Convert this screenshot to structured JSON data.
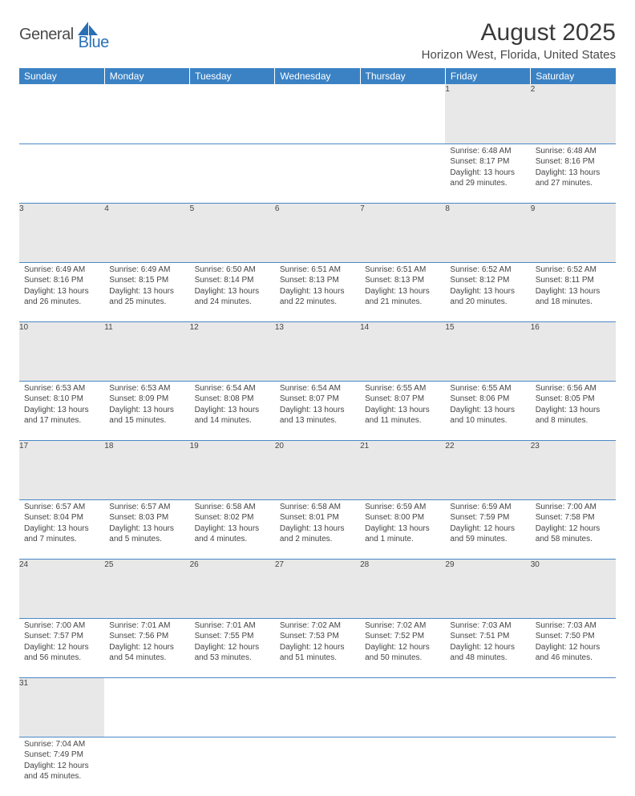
{
  "brand": {
    "dark": "General",
    "blue": "Blue"
  },
  "title": "August 2025",
  "location": "Horizon West, Florida, United States",
  "colors": {
    "header_bg": "#3b82c4",
    "header_text": "#ffffff",
    "daynum_bg": "#e8e8e8",
    "row_border": "#4a88c6",
    "logo_blue": "#2a6fb5",
    "text": "#444444"
  },
  "day_headers": [
    "Sunday",
    "Monday",
    "Tuesday",
    "Wednesday",
    "Thursday",
    "Friday",
    "Saturday"
  ],
  "weeks": [
    [
      null,
      null,
      null,
      null,
      null,
      {
        "n": "1",
        "sr": "6:48 AM",
        "ss": "8:17 PM",
        "dl": "13 hours and 29 minutes."
      },
      {
        "n": "2",
        "sr": "6:48 AM",
        "ss": "8:16 PM",
        "dl": "13 hours and 27 minutes."
      }
    ],
    [
      {
        "n": "3",
        "sr": "6:49 AM",
        "ss": "8:16 PM",
        "dl": "13 hours and 26 minutes."
      },
      {
        "n": "4",
        "sr": "6:49 AM",
        "ss": "8:15 PM",
        "dl": "13 hours and 25 minutes."
      },
      {
        "n": "5",
        "sr": "6:50 AM",
        "ss": "8:14 PM",
        "dl": "13 hours and 24 minutes."
      },
      {
        "n": "6",
        "sr": "6:51 AM",
        "ss": "8:13 PM",
        "dl": "13 hours and 22 minutes."
      },
      {
        "n": "7",
        "sr": "6:51 AM",
        "ss": "8:13 PM",
        "dl": "13 hours and 21 minutes."
      },
      {
        "n": "8",
        "sr": "6:52 AM",
        "ss": "8:12 PM",
        "dl": "13 hours and 20 minutes."
      },
      {
        "n": "9",
        "sr": "6:52 AM",
        "ss": "8:11 PM",
        "dl": "13 hours and 18 minutes."
      }
    ],
    [
      {
        "n": "10",
        "sr": "6:53 AM",
        "ss": "8:10 PM",
        "dl": "13 hours and 17 minutes."
      },
      {
        "n": "11",
        "sr": "6:53 AM",
        "ss": "8:09 PM",
        "dl": "13 hours and 15 minutes."
      },
      {
        "n": "12",
        "sr": "6:54 AM",
        "ss": "8:08 PM",
        "dl": "13 hours and 14 minutes."
      },
      {
        "n": "13",
        "sr": "6:54 AM",
        "ss": "8:07 PM",
        "dl": "13 hours and 13 minutes."
      },
      {
        "n": "14",
        "sr": "6:55 AM",
        "ss": "8:07 PM",
        "dl": "13 hours and 11 minutes."
      },
      {
        "n": "15",
        "sr": "6:55 AM",
        "ss": "8:06 PM",
        "dl": "13 hours and 10 minutes."
      },
      {
        "n": "16",
        "sr": "6:56 AM",
        "ss": "8:05 PM",
        "dl": "13 hours and 8 minutes."
      }
    ],
    [
      {
        "n": "17",
        "sr": "6:57 AM",
        "ss": "8:04 PM",
        "dl": "13 hours and 7 minutes."
      },
      {
        "n": "18",
        "sr": "6:57 AM",
        "ss": "8:03 PM",
        "dl": "13 hours and 5 minutes."
      },
      {
        "n": "19",
        "sr": "6:58 AM",
        "ss": "8:02 PM",
        "dl": "13 hours and 4 minutes."
      },
      {
        "n": "20",
        "sr": "6:58 AM",
        "ss": "8:01 PM",
        "dl": "13 hours and 2 minutes."
      },
      {
        "n": "21",
        "sr": "6:59 AM",
        "ss": "8:00 PM",
        "dl": "13 hours and 1 minute."
      },
      {
        "n": "22",
        "sr": "6:59 AM",
        "ss": "7:59 PM",
        "dl": "12 hours and 59 minutes."
      },
      {
        "n": "23",
        "sr": "7:00 AM",
        "ss": "7:58 PM",
        "dl": "12 hours and 58 minutes."
      }
    ],
    [
      {
        "n": "24",
        "sr": "7:00 AM",
        "ss": "7:57 PM",
        "dl": "12 hours and 56 minutes."
      },
      {
        "n": "25",
        "sr": "7:01 AM",
        "ss": "7:56 PM",
        "dl": "12 hours and 54 minutes."
      },
      {
        "n": "26",
        "sr": "7:01 AM",
        "ss": "7:55 PM",
        "dl": "12 hours and 53 minutes."
      },
      {
        "n": "27",
        "sr": "7:02 AM",
        "ss": "7:53 PM",
        "dl": "12 hours and 51 minutes."
      },
      {
        "n": "28",
        "sr": "7:02 AM",
        "ss": "7:52 PM",
        "dl": "12 hours and 50 minutes."
      },
      {
        "n": "29",
        "sr": "7:03 AM",
        "ss": "7:51 PM",
        "dl": "12 hours and 48 minutes."
      },
      {
        "n": "30",
        "sr": "7:03 AM",
        "ss": "7:50 PM",
        "dl": "12 hours and 46 minutes."
      }
    ],
    [
      {
        "n": "31",
        "sr": "7:04 AM",
        "ss": "7:49 PM",
        "dl": "12 hours and 45 minutes."
      },
      null,
      null,
      null,
      null,
      null,
      null
    ]
  ],
  "labels": {
    "sunrise": "Sunrise:",
    "sunset": "Sunset:",
    "daylight": "Daylight:"
  }
}
